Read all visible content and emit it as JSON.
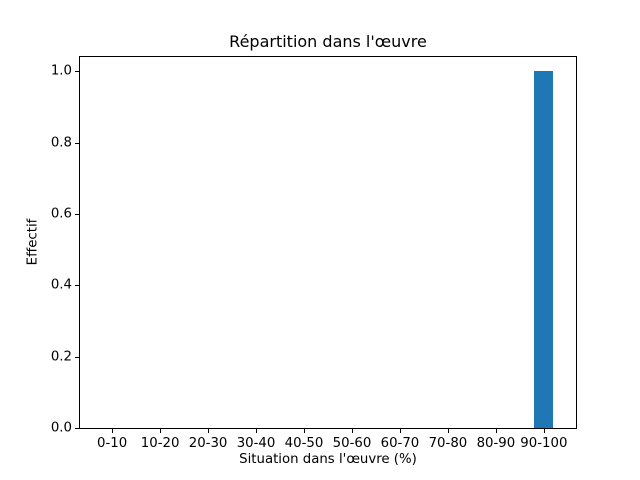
{
  "figure": {
    "background": "#ffffff"
  },
  "chart_data": {
    "type": "bar",
    "title": "Répartition dans l'œuvre",
    "xlabel": "Situation dans l'œuvre (%)",
    "ylabel": "Effectif",
    "categories": [
      "0-10",
      "10-20",
      "20-30",
      "30-40",
      "40-50",
      "50-60",
      "60-70",
      "70-80",
      "80-90",
      "90-100"
    ],
    "values": [
      0,
      0,
      0,
      0,
      0,
      0,
      0,
      0,
      0,
      1
    ],
    "ytick_values": [
      0,
      0.2,
      0.4,
      0.6,
      0.8,
      1.0
    ],
    "ytick_labels": [
      "0.0",
      "0.2",
      "0.4",
      "0.6",
      "0.8",
      "1.0"
    ],
    "ylim": [
      0,
      1.04
    ],
    "xlim": [
      -0.67,
      9.67
    ],
    "bar_width": 0.4,
    "bar_color": "#1f77b4",
    "axis_color": "#000000",
    "text_color": "#000000",
    "grid": false,
    "legend": null
  }
}
